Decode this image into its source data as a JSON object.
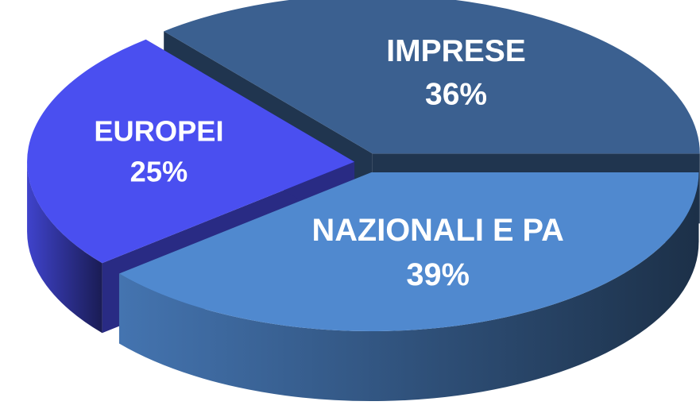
{
  "chart_data": {
    "type": "pie",
    "categories": [
      "NAZIONALI E PA",
      "EUROPEI",
      "IMPRESE"
    ],
    "values": [
      39,
      25,
      36
    ],
    "value_labels": [
      "39%",
      "25%",
      "36%"
    ],
    "colors": [
      "#5089cf",
      "#4a4ff0",
      "#3b6090"
    ]
  }
}
